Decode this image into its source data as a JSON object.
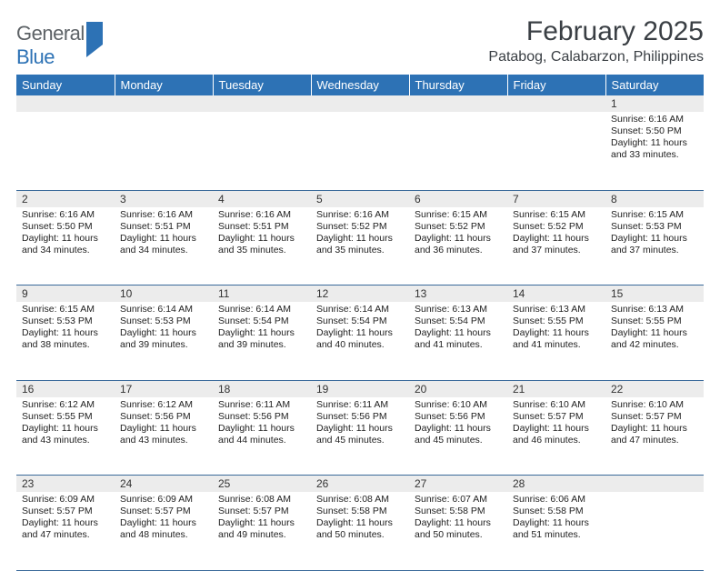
{
  "header": {
    "logo_text_1": "General",
    "logo_text_2": "Blue",
    "month_title": "February 2025",
    "location": "Patabog, Calabarzon, Philippines"
  },
  "colors": {
    "header_bg": "#2d72b5",
    "header_text": "#ffffff",
    "daynum_bg": "#ececec",
    "row_divider": "#3a6a9a",
    "logo_gray": "#5d6266",
    "logo_blue": "#2d72b5"
  },
  "day_headers": [
    "Sunday",
    "Monday",
    "Tuesday",
    "Wednesday",
    "Thursday",
    "Friday",
    "Saturday"
  ],
  "weeks": [
    {
      "nums": [
        "",
        "",
        "",
        "",
        "",
        "",
        "1"
      ],
      "cells": [
        null,
        null,
        null,
        null,
        null,
        null,
        {
          "sunrise": "Sunrise: 6:16 AM",
          "sunset": "Sunset: 5:50 PM",
          "daylight": "Daylight: 11 hours and 33 minutes."
        }
      ]
    },
    {
      "nums": [
        "2",
        "3",
        "4",
        "5",
        "6",
        "7",
        "8"
      ],
      "cells": [
        {
          "sunrise": "Sunrise: 6:16 AM",
          "sunset": "Sunset: 5:50 PM",
          "daylight": "Daylight: 11 hours and 34 minutes."
        },
        {
          "sunrise": "Sunrise: 6:16 AM",
          "sunset": "Sunset: 5:51 PM",
          "daylight": "Daylight: 11 hours and 34 minutes."
        },
        {
          "sunrise": "Sunrise: 6:16 AM",
          "sunset": "Sunset: 5:51 PM",
          "daylight": "Daylight: 11 hours and 35 minutes."
        },
        {
          "sunrise": "Sunrise: 6:16 AM",
          "sunset": "Sunset: 5:52 PM",
          "daylight": "Daylight: 11 hours and 35 minutes."
        },
        {
          "sunrise": "Sunrise: 6:15 AM",
          "sunset": "Sunset: 5:52 PM",
          "daylight": "Daylight: 11 hours and 36 minutes."
        },
        {
          "sunrise": "Sunrise: 6:15 AM",
          "sunset": "Sunset: 5:52 PM",
          "daylight": "Daylight: 11 hours and 37 minutes."
        },
        {
          "sunrise": "Sunrise: 6:15 AM",
          "sunset": "Sunset: 5:53 PM",
          "daylight": "Daylight: 11 hours and 37 minutes."
        }
      ]
    },
    {
      "nums": [
        "9",
        "10",
        "11",
        "12",
        "13",
        "14",
        "15"
      ],
      "cells": [
        {
          "sunrise": "Sunrise: 6:15 AM",
          "sunset": "Sunset: 5:53 PM",
          "daylight": "Daylight: 11 hours and 38 minutes."
        },
        {
          "sunrise": "Sunrise: 6:14 AM",
          "sunset": "Sunset: 5:53 PM",
          "daylight": "Daylight: 11 hours and 39 minutes."
        },
        {
          "sunrise": "Sunrise: 6:14 AM",
          "sunset": "Sunset: 5:54 PM",
          "daylight": "Daylight: 11 hours and 39 minutes."
        },
        {
          "sunrise": "Sunrise: 6:14 AM",
          "sunset": "Sunset: 5:54 PM",
          "daylight": "Daylight: 11 hours and 40 minutes."
        },
        {
          "sunrise": "Sunrise: 6:13 AM",
          "sunset": "Sunset: 5:54 PM",
          "daylight": "Daylight: 11 hours and 41 minutes."
        },
        {
          "sunrise": "Sunrise: 6:13 AM",
          "sunset": "Sunset: 5:55 PM",
          "daylight": "Daylight: 11 hours and 41 minutes."
        },
        {
          "sunrise": "Sunrise: 6:13 AM",
          "sunset": "Sunset: 5:55 PM",
          "daylight": "Daylight: 11 hours and 42 minutes."
        }
      ]
    },
    {
      "nums": [
        "16",
        "17",
        "18",
        "19",
        "20",
        "21",
        "22"
      ],
      "cells": [
        {
          "sunrise": "Sunrise: 6:12 AM",
          "sunset": "Sunset: 5:55 PM",
          "daylight": "Daylight: 11 hours and 43 minutes."
        },
        {
          "sunrise": "Sunrise: 6:12 AM",
          "sunset": "Sunset: 5:56 PM",
          "daylight": "Daylight: 11 hours and 43 minutes."
        },
        {
          "sunrise": "Sunrise: 6:11 AM",
          "sunset": "Sunset: 5:56 PM",
          "daylight": "Daylight: 11 hours and 44 minutes."
        },
        {
          "sunrise": "Sunrise: 6:11 AM",
          "sunset": "Sunset: 5:56 PM",
          "daylight": "Daylight: 11 hours and 45 minutes."
        },
        {
          "sunrise": "Sunrise: 6:10 AM",
          "sunset": "Sunset: 5:56 PM",
          "daylight": "Daylight: 11 hours and 45 minutes."
        },
        {
          "sunrise": "Sunrise: 6:10 AM",
          "sunset": "Sunset: 5:57 PM",
          "daylight": "Daylight: 11 hours and 46 minutes."
        },
        {
          "sunrise": "Sunrise: 6:10 AM",
          "sunset": "Sunset: 5:57 PM",
          "daylight": "Daylight: 11 hours and 47 minutes."
        }
      ]
    },
    {
      "nums": [
        "23",
        "24",
        "25",
        "26",
        "27",
        "28",
        ""
      ],
      "cells": [
        {
          "sunrise": "Sunrise: 6:09 AM",
          "sunset": "Sunset: 5:57 PM",
          "daylight": "Daylight: 11 hours and 47 minutes."
        },
        {
          "sunrise": "Sunrise: 6:09 AM",
          "sunset": "Sunset: 5:57 PM",
          "daylight": "Daylight: 11 hours and 48 minutes."
        },
        {
          "sunrise": "Sunrise: 6:08 AM",
          "sunset": "Sunset: 5:57 PM",
          "daylight": "Daylight: 11 hours and 49 minutes."
        },
        {
          "sunrise": "Sunrise: 6:08 AM",
          "sunset": "Sunset: 5:58 PM",
          "daylight": "Daylight: 11 hours and 50 minutes."
        },
        {
          "sunrise": "Sunrise: 6:07 AM",
          "sunset": "Sunset: 5:58 PM",
          "daylight": "Daylight: 11 hours and 50 minutes."
        },
        {
          "sunrise": "Sunrise: 6:06 AM",
          "sunset": "Sunset: 5:58 PM",
          "daylight": "Daylight: 11 hours and 51 minutes."
        },
        null
      ]
    }
  ]
}
